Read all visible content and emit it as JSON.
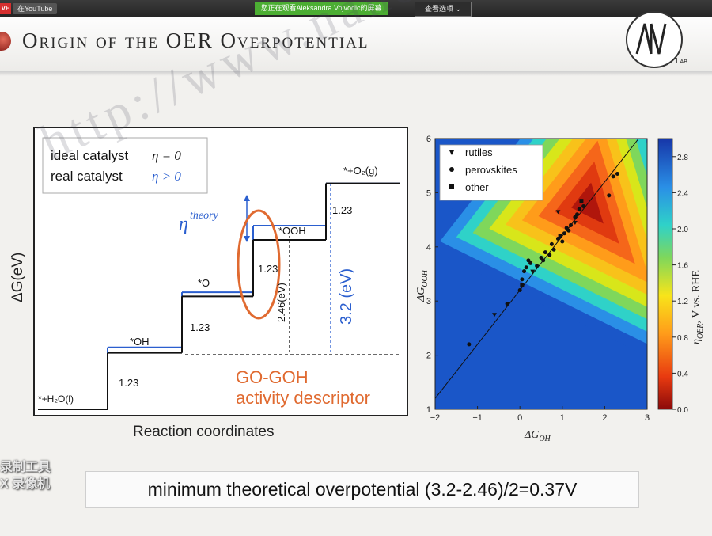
{
  "topbar": {
    "live_label": "VE",
    "youtube_label": "在YouTube",
    "share_banner": "您正在观看Aleksandra Vojvodic的屏幕",
    "view_options": "查看选项 ⌄"
  },
  "slide": {
    "title": "Origin of the OER Overpotential",
    "logo_text": "Lab",
    "formula": "minimum theoretical overpotential (3.2-2.46)/2=0.37V",
    "watermark": "http://www.nanomxenes.com",
    "watermark_tool_line1": "录制工具",
    "watermark_tool_line2": "X 录像机"
  },
  "chart_data": [
    {
      "type": "line",
      "ylabel": "ΔG(eV)",
      "xlabel": "Reaction coordinates",
      "legend": [
        "ideal catalyst η = 0",
        "real catalyst η > 0"
      ],
      "legend_ideal": "ideal catalyst",
      "legend_ideal_eq": "η = 0",
      "legend_real": "real catalyst",
      "legend_real_eq": "η > 0",
      "colors": {
        "ideal": "#111111",
        "real": "#2b5fcf"
      },
      "states": [
        "*+H2O(l)",
        "*OH",
        "*O",
        "*OOH",
        "*+O2(g)"
      ],
      "ideal_levels": [
        0,
        1.23,
        2.46,
        3.69,
        4.92
      ],
      "real_levels": [
        0,
        1.35,
        2.55,
        4.0,
        4.92
      ],
      "step_labels": [
        "1.23",
        "1.23",
        "1.23",
        "1.23"
      ],
      "label_h2o": "*+H₂O(l)",
      "label_oh": "*OH",
      "label_o": "*O",
      "label_ooh": "*OOH",
      "label_o2": "*+O₂(g)",
      "eta_label": "η",
      "eta_sup": "theory",
      "annot_246": "2.46(eV)",
      "annot_32": "3.2 (eV)",
      "descriptor_line1": "GO-GOH",
      "descriptor_line2": "activity descriptor",
      "descriptor_color": "#e06a30"
    },
    {
      "type": "scatter",
      "subtype": "heatmap-with-scatter",
      "xlabel": "ΔG_OH",
      "ylabel": "ΔG_OOH",
      "xlabel_main": "ΔG",
      "xlabel_sub": "OH",
      "ylabel_main": "ΔG",
      "ylabel_sub": "OOH",
      "xlim": [
        -2,
        3
      ],
      "ylim": [
        1,
        6
      ],
      "xticks": [
        "−2",
        "−1",
        "0",
        "1",
        "2",
        "3"
      ],
      "yticks": [
        "1",
        "2",
        "3",
        "4",
        "5",
        "6"
      ],
      "colorbar_label": "η_OER, V vs. RHE",
      "colorbar_eta": "η",
      "colorbar_sub": "OER",
      "colorbar_rest": ", V vs. RHE",
      "colorbar_range": [
        0,
        3.0
      ],
      "colorbar_ticks": [
        "0.0",
        "0.4",
        "0.8",
        "1.2",
        "1.6",
        "2.0",
        "2.4",
        "2.8"
      ],
      "legend": [
        "rutiles",
        "perovskites",
        "other"
      ],
      "legend_placement": "top-left",
      "scaling_line": {
        "slope": 1,
        "intercept": 3.2
      },
      "series": [
        {
          "name": "rutiles",
          "marker": "triangle",
          "points": [
            [
              -0.6,
              2.75
            ],
            [
              0.9,
              4.65
            ],
            [
              1.3,
              4.45
            ],
            [
              0.3,
              3.55
            ]
          ]
        },
        {
          "name": "perovskites",
          "marker": "circle",
          "points": [
            [
              -1.2,
              2.2
            ],
            [
              -0.3,
              2.95
            ],
            [
              0.0,
              3.2
            ],
            [
              0.05,
              3.4
            ],
            [
              0.1,
              3.55
            ],
            [
              0.15,
              3.62
            ],
            [
              0.2,
              3.75
            ],
            [
              0.25,
              3.7
            ],
            [
              0.4,
              3.65
            ],
            [
              0.5,
              3.8
            ],
            [
              0.55,
              3.75
            ],
            [
              0.6,
              3.9
            ],
            [
              0.7,
              3.85
            ],
            [
              0.75,
              4.05
            ],
            [
              0.8,
              3.95
            ],
            [
              0.9,
              4.15
            ],
            [
              1.0,
              4.1
            ],
            [
              1.05,
              4.25
            ],
            [
              1.1,
              4.35
            ],
            [
              1.15,
              4.3
            ],
            [
              1.2,
              4.4
            ],
            [
              1.3,
              4.55
            ],
            [
              1.35,
              4.6
            ],
            [
              1.4,
              4.7
            ],
            [
              1.5,
              4.75
            ],
            [
              2.1,
              4.95
            ],
            [
              2.2,
              5.3
            ],
            [
              2.3,
              5.35
            ]
          ]
        },
        {
          "name": "other",
          "marker": "square",
          "points": [
            [
              0.05,
              3.3
            ],
            [
              0.95,
              4.2
            ],
            [
              1.45,
              4.85
            ]
          ]
        }
      ]
    }
  ]
}
